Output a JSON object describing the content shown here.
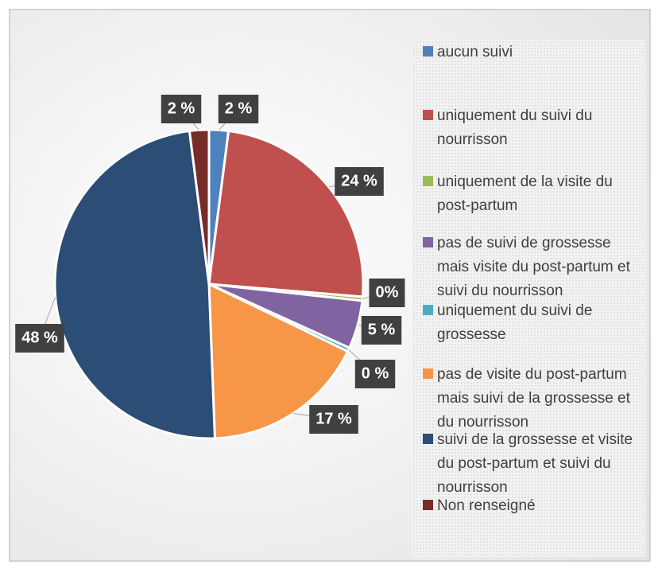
{
  "chart_data": {
    "type": "pie",
    "categories": [
      "aucun suivi",
      "uniquement du suivi du nourrisson",
      "uniquement de la visite du post-partum",
      "pas de suivi de grossesse mais visite du post-partum et suivi du nourrisson",
      "uniquement du suivi de grossesse",
      "pas de visite du post-partum mais suivi de la grossesse et du nourrisson",
      "suivi de la grossesse et visite du post-partum et suivi du nourrisson",
      "Non renseigné"
    ],
    "values": [
      2,
      24,
      0.4,
      5,
      0.4,
      17,
      48,
      2
    ],
    "value_labels": [
      "2 %",
      "24 %",
      "0%",
      "5 %",
      "0 %",
      "17 %",
      "48 %",
      "2 %"
    ],
    "colors": [
      "#4f81bd",
      "#c0504d",
      "#9bbb59",
      "#8064a2",
      "#4bacc6",
      "#f79646",
      "#2c4d75",
      "#772c2a"
    ],
    "legend": "right"
  }
}
